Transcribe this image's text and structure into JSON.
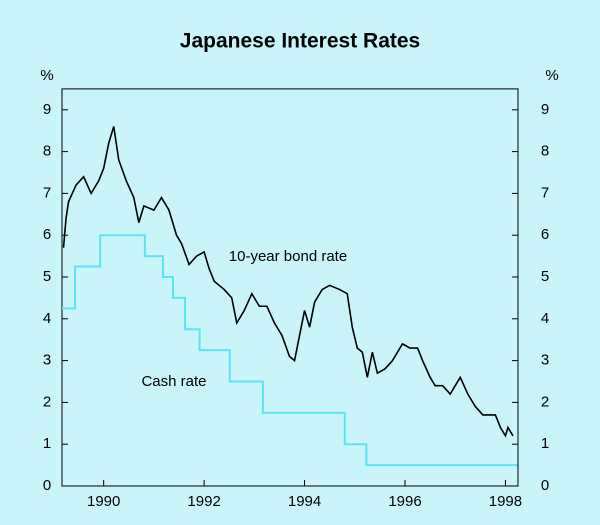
{
  "chart_data": {
    "type": "line",
    "title": "Japanese Interest Rates",
    "y_label": "%",
    "annotations": [
      "10-year bond rate",
      "Cash rate"
    ],
    "xlim": [
      1989.17,
      1998.25
    ],
    "xticks": [
      1990,
      1992,
      1994,
      1996,
      1998
    ],
    "ylim": [
      0,
      9.5
    ],
    "yticks": [
      0,
      1,
      2,
      3,
      4,
      5,
      6,
      7,
      8,
      9
    ],
    "background": "#c8f4fa",
    "series": [
      {
        "name": "10-year bond rate",
        "color": "#000000",
        "x": [
          1989.2,
          1989.25,
          1989.3,
          1989.45,
          1989.6,
          1989.75,
          1989.9,
          1990.0,
          1990.1,
          1990.2,
          1990.3,
          1990.45,
          1990.6,
          1990.7,
          1990.8,
          1991.0,
          1991.15,
          1991.3,
          1991.45,
          1991.55,
          1991.7,
          1991.85,
          1992.0,
          1992.1,
          1992.2,
          1992.4,
          1992.55,
          1992.65,
          1992.8,
          1992.95,
          1993.1,
          1993.25,
          1993.4,
          1993.55,
          1993.7,
          1993.8,
          1993.95,
          1994.0,
          1994.1,
          1994.2,
          1994.35,
          1994.5,
          1994.7,
          1994.85,
          1994.95,
          1995.05,
          1995.15,
          1995.25,
          1995.35,
          1995.45,
          1995.6,
          1995.75,
          1995.85,
          1995.95,
          1996.1,
          1996.25,
          1996.35,
          1996.5,
          1996.6,
          1996.75,
          1996.9,
          1997.0,
          1997.1,
          1997.25,
          1997.4,
          1997.55,
          1997.7,
          1997.8,
          1997.9,
          1998.0,
          1998.05,
          1998.15
        ],
        "values": [
          5.7,
          6.4,
          6.8,
          7.2,
          7.4,
          7.0,
          7.3,
          7.6,
          8.2,
          8.6,
          7.8,
          7.3,
          6.9,
          6.3,
          6.7,
          6.6,
          6.9,
          6.6,
          6.0,
          5.8,
          5.3,
          5.5,
          5.6,
          5.2,
          4.9,
          4.7,
          4.5,
          3.9,
          4.2,
          4.6,
          4.3,
          4.3,
          3.9,
          3.6,
          3.1,
          3.0,
          3.9,
          4.2,
          3.8,
          4.4,
          4.7,
          4.8,
          4.7,
          4.6,
          3.8,
          3.3,
          3.2,
          2.6,
          3.2,
          2.7,
          2.8,
          3.0,
          3.2,
          3.4,
          3.3,
          3.3,
          3.0,
          2.6,
          2.4,
          2.4,
          2.2,
          2.4,
          2.6,
          2.2,
          1.9,
          1.7,
          1.7,
          1.7,
          1.4,
          1.2,
          1.4,
          1.2
        ]
      },
      {
        "name": "Cash rate",
        "color": "#5ce3f2",
        "x": [
          1989.17,
          1989.43,
          1989.43,
          1989.93,
          1989.93,
          1990.82,
          1990.82,
          1991.18,
          1991.18,
          1991.38,
          1991.38,
          1991.62,
          1991.62,
          1991.91,
          1991.91,
          1992.51,
          1992.51,
          1993.17,
          1993.17,
          1994.8,
          1994.8,
          1995.23,
          1995.23,
          1998.24
        ],
        "values": [
          4.25,
          4.25,
          5.25,
          5.25,
          6.0,
          6.0,
          5.5,
          5.5,
          5.0,
          5.0,
          4.5,
          4.5,
          3.75,
          3.75,
          3.25,
          3.25,
          2.5,
          2.5,
          1.75,
          1.75,
          1.0,
          1.0,
          0.5,
          0.5
        ]
      }
    ]
  }
}
